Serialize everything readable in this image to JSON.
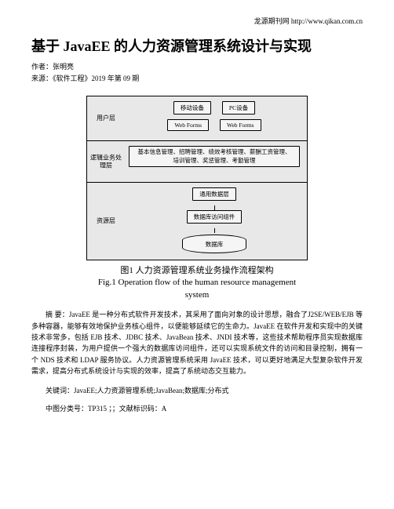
{
  "header": {
    "site": "龙源期刊网 http://www.qikan.com.cn"
  },
  "title": "基于 JavaEE 的人力资源管理系统设计与实现",
  "author_line": "作者：张明亮",
  "source_line": "来源：《软件工程》2019 年第 09 期",
  "diagram": {
    "layer1": {
      "label": "用户层",
      "b1": "移动设备",
      "b2": "PC设备",
      "b3": "Web Forms",
      "b4": "Web Forms"
    },
    "layer2": {
      "label": "逻辑业务处理层",
      "line1": "基本信息管理、招聘管理、绩效考核管理、薪酬工资管理、",
      "line2": "培训管理、奖惩管理、考勤管理"
    },
    "layer3": {
      "label": "资源层",
      "b1": "通用数据层",
      "b2": "数据库访问组件",
      "db": "数据库"
    }
  },
  "caption_cn": "图1 人力资源管理系统业务操作流程架构",
  "caption_en_1": "Fig.1 Operation flow of the human resource management",
  "caption_en_2": "system",
  "abstract": "摘 要：JavaEE 是一种分布式软件开发技术，其采用了面向对象的设计思想，融合了J2SE/WEB/EJB 等多种容器，能够有效地保护业务核心组件，以便能够延续它的生命力。JavaEE 在软件开发和实现中的关键技术非常多，包括 EJB 技术、JDBC 技术、JavaBean 技术、JNDI 技术等，这些技术帮助程序员实现数据库连接程序封装，为用户提供一个强大的数据库访问组件，还可以实现系统文件的访问和目录控制，拥有一个 NDS 技术和 LDAP 服务协议。人力资源管理系统采用 JavaEE 技术，可以更好地满足大型复杂软件开发需求，提高分布式系统设计与实现的效率，提高了系统动态交互能力。",
  "keywords": "关键词：JavaEE;人力资源管理系统;JavaBean;数据库;分布式",
  "clc": "中图分类号：TP315 ；；文献标识码：A"
}
